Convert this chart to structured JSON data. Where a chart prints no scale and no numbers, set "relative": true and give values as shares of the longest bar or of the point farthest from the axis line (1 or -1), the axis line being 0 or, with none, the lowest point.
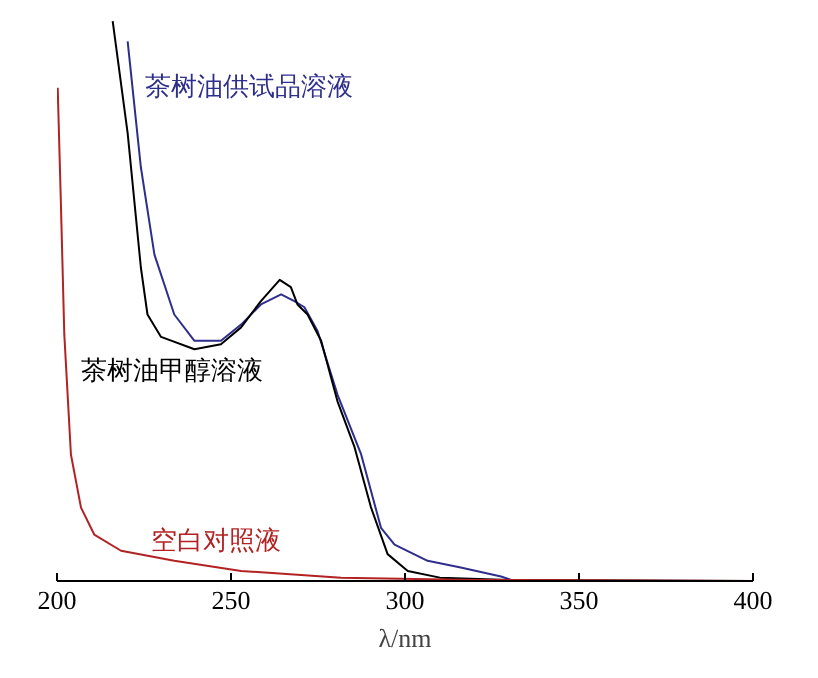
{
  "chart_data": {
    "type": "line",
    "relative": true,
    "xlabel": "λ/nm",
    "xlim": [
      200,
      400
    ],
    "xticks": [
      200,
      250,
      300,
      350,
      400
    ],
    "grid": false,
    "marker": "none",
    "line_style": "solid",
    "tick_labels": "x",
    "series": [
      {
        "name": "茶树油供试品溶液",
        "color": "#2e2e8c",
        "x": [
          220.3,
          224.1,
          228,
          233.7,
          239.5,
          247.1,
          252.9,
          258.6,
          264.4,
          268.2,
          271.1,
          274.9,
          280.6,
          287.4,
          293.1,
          297,
          306.5,
          316,
          327.6,
          331.4,
          350,
          400
        ],
        "values": [
          0.964,
          0.739,
          0.583,
          0.476,
          0.429,
          0.429,
          0.458,
          0.494,
          0.512,
          0.5,
          0.489,
          0.446,
          0.333,
          0.226,
          0.095,
          0.065,
          0.036,
          0.024,
          0.008,
          0,
          0,
          0
        ]
      },
      {
        "name": "茶树油甲醇溶液",
        "color": "#000000",
        "x": [
          216,
          220.3,
          224.1,
          226,
          229.9,
          239.5,
          247.1,
          252.9,
          258.6,
          264,
          267.2,
          269.1,
          272,
          275.9,
          280.6,
          285.5,
          290.2,
          295,
          300.8,
          310,
          330,
          400
        ],
        "values": [
          1.0,
          0.8,
          0.56,
          0.476,
          0.436,
          0.414,
          0.423,
          0.453,
          0.5,
          0.538,
          0.525,
          0.494,
          0.476,
          0.429,
          0.321,
          0.239,
          0.132,
          0.048,
          0.018,
          0.006,
          0.002,
          0
        ]
      },
      {
        "name": "空白对照液",
        "color": "#b22222",
        "x": [
          200.2,
          201.1,
          202.1,
          204,
          206.9,
          210.7,
          218.4,
          233.7,
          252.9,
          281.6,
          320,
          400
        ],
        "values": [
          0.881,
          0.679,
          0.44,
          0.226,
          0.131,
          0.083,
          0.054,
          0.036,
          0.018,
          0.006,
          0.002,
          0
        ]
      }
    ]
  }
}
